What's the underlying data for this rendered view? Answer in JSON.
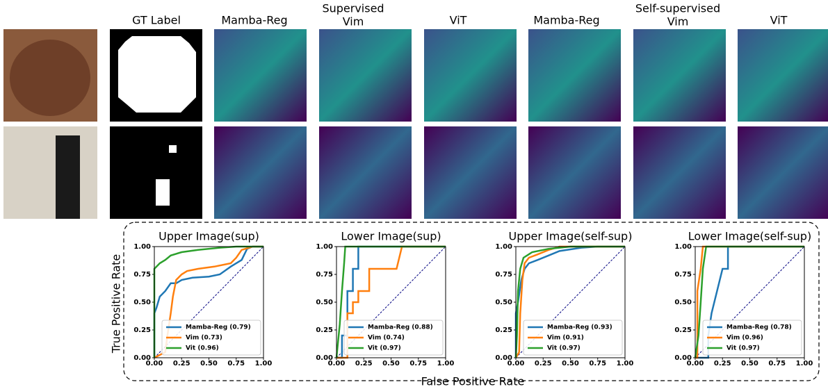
{
  "panel_headers": [
    "GT Label",
    "Mamba-Reg",
    "Supervised",
    "Vim",
    "ViT",
    "Mamba-Reg",
    "Self-supervised",
    "Vim",
    "ViT"
  ],
  "shared_axes": {
    "x_label": "False Positive Rate",
    "y_label": "True Positive Rate"
  },
  "chart_data": [
    {
      "type": "line",
      "title": "Upper Image(sup)",
      "xlim": [
        0,
        1
      ],
      "ylim": [
        0,
        1
      ],
      "xticks": [
        {
          "value": 0,
          "label": "0.00"
        },
        {
          "value": 0.25,
          "label": "0.25"
        },
        {
          "value": 0.5,
          "label": "0.50"
        },
        {
          "value": 0.75,
          "label": "0.75"
        },
        {
          "value": 1,
          "label": "1.00"
        }
      ],
      "yticks": [
        {
          "value": 0,
          "label": "0.00"
        },
        {
          "value": 0.25,
          "label": "0.25"
        },
        {
          "value": 0.5,
          "label": "0.50"
        },
        {
          "value": 0.75,
          "label": "0.75"
        },
        {
          "value": 1,
          "label": "1.00"
        }
      ],
      "legend": "lower right",
      "series": [
        {
          "name": "Mamba-Reg (0.79)",
          "color": "#1f77b4",
          "x": [
            0,
            0,
            0.02,
            0.05,
            0.1,
            0.15,
            0.2,
            0.25,
            0.35,
            0.5,
            0.6,
            0.7,
            0.8,
            0.85,
            0.9,
            1
          ],
          "values": [
            0,
            0.4,
            0.45,
            0.55,
            0.6,
            0.67,
            0.67,
            0.7,
            0.72,
            0.73,
            0.75,
            0.82,
            0.88,
            0.98,
            1,
            1
          ]
        },
        {
          "name": "Vim (0.73)",
          "color": "#ff7f0e",
          "x": [
            0,
            0.1,
            0.12,
            0.15,
            0.17,
            0.2,
            0.25,
            0.3,
            0.4,
            0.55,
            0.7,
            0.75,
            0.8,
            0.9,
            1
          ],
          "values": [
            0,
            0.05,
            0.2,
            0.4,
            0.55,
            0.7,
            0.75,
            0.78,
            0.8,
            0.82,
            0.85,
            0.9,
            0.97,
            1,
            1
          ]
        },
        {
          "name": "Vit (0.96)",
          "color": "#2ca02c",
          "x": [
            0,
            0,
            0.05,
            0.1,
            0.15,
            0.25,
            0.4,
            0.6,
            0.75,
            1
          ],
          "values": [
            0,
            0.8,
            0.85,
            0.88,
            0.92,
            0.95,
            0.97,
            0.99,
            1,
            1
          ]
        }
      ]
    },
    {
      "type": "line",
      "title": "Lower Image(sup)",
      "xlim": [
        0,
        1
      ],
      "ylim": [
        0,
        1
      ],
      "xticks": [
        {
          "value": 0,
          "label": "0.00"
        },
        {
          "value": 0.25,
          "label": "0.25"
        },
        {
          "value": 0.5,
          "label": "0.50"
        },
        {
          "value": 0.75,
          "label": "0.75"
        },
        {
          "value": 1,
          "label": "1.00"
        }
      ],
      "yticks": [
        {
          "value": 0,
          "label": "0.00"
        },
        {
          "value": 0.25,
          "label": "0.25"
        },
        {
          "value": 0.5,
          "label": "0.50"
        },
        {
          "value": 0.75,
          "label": "0.75"
        },
        {
          "value": 1,
          "label": "1.00"
        }
      ],
      "legend": "lower right",
      "series": [
        {
          "name": "Mamba-Reg (0.88)",
          "color": "#1f77b4",
          "x": [
            0,
            0.05,
            0.05,
            0.1,
            0.1,
            0.15,
            0.15,
            0.2,
            0.2,
            1
          ],
          "values": [
            0,
            0,
            0.2,
            0.2,
            0.6,
            0.6,
            0.8,
            0.8,
            1,
            1
          ]
        },
        {
          "name": "Vim (0.74)",
          "color": "#ff7f0e",
          "x": [
            0,
            0.1,
            0.1,
            0.15,
            0.15,
            0.2,
            0.2,
            0.3,
            0.3,
            0.55,
            0.6,
            1
          ],
          "values": [
            0,
            0,
            0.4,
            0.4,
            0.5,
            0.5,
            0.6,
            0.6,
            0.8,
            0.8,
            1,
            1
          ]
        },
        {
          "name": "Vit (0.97)",
          "color": "#2ca02c",
          "x": [
            0,
            0.03,
            0.05,
            0.07,
            0.08,
            1
          ],
          "values": [
            0,
            0.3,
            0.6,
            0.85,
            1,
            1
          ]
        }
      ]
    },
    {
      "type": "line",
      "title": "Upper Image(self-sup)",
      "xlim": [
        0,
        1
      ],
      "ylim": [
        0,
        1
      ],
      "xticks": [
        {
          "value": 0,
          "label": "0.00"
        },
        {
          "value": 0.25,
          "label": "0.25"
        },
        {
          "value": 0.5,
          "label": "0.50"
        },
        {
          "value": 0.75,
          "label": "0.75"
        },
        {
          "value": 1,
          "label": "1.00"
        }
      ],
      "yticks": [
        {
          "value": 0,
          "label": "0.00"
        },
        {
          "value": 0.25,
          "label": "0.25"
        },
        {
          "value": 0.5,
          "label": "0.50"
        },
        {
          "value": 0.75,
          "label": "0.75"
        },
        {
          "value": 1,
          "label": "1.00"
        }
      ],
      "legend": "lower right",
      "series": [
        {
          "name": "Mamba-Reg (0.93)",
          "color": "#1f77b4",
          "x": [
            0,
            0,
            0.02,
            0.05,
            0.08,
            0.12,
            0.2,
            0.3,
            0.4,
            0.6,
            0.75,
            1
          ],
          "values": [
            0,
            0.4,
            0.5,
            0.7,
            0.8,
            0.85,
            0.88,
            0.92,
            0.96,
            0.99,
            1,
            1
          ]
        },
        {
          "name": "Vim (0.91)",
          "color": "#ff7f0e",
          "x": [
            0,
            0.03,
            0.04,
            0.06,
            0.08,
            0.12,
            0.2,
            0.3,
            0.4,
            1
          ],
          "values": [
            0,
            0.05,
            0.4,
            0.7,
            0.85,
            0.9,
            0.93,
            0.97,
            1,
            1
          ]
        },
        {
          "name": "Vit (0.97)",
          "color": "#2ca02c",
          "x": [
            0,
            0.01,
            0.02,
            0.04,
            0.07,
            0.15,
            0.3,
            0.5,
            1
          ],
          "values": [
            0,
            0.2,
            0.6,
            0.8,
            0.9,
            0.95,
            0.98,
            1,
            1
          ]
        }
      ]
    },
    {
      "type": "line",
      "title": "Lower Image(self-sup)",
      "xlim": [
        0,
        1
      ],
      "ylim": [
        0,
        1
      ],
      "xticks": [
        {
          "value": 0,
          "label": "0.00"
        },
        {
          "value": 0.25,
          "label": "0.25"
        },
        {
          "value": 0.5,
          "label": "0.50"
        },
        {
          "value": 0.75,
          "label": "0.75"
        },
        {
          "value": 1,
          "label": "1.00"
        }
      ],
      "yticks": [
        {
          "value": 0,
          "label": "0.00"
        },
        {
          "value": 0.25,
          "label": "0.25"
        },
        {
          "value": 0.5,
          "label": "0.50"
        },
        {
          "value": 0.75,
          "label": "0.75"
        },
        {
          "value": 1,
          "label": "1.00"
        }
      ],
      "legend": "lower right",
      "series": [
        {
          "name": "Mamba-Reg (0.78)",
          "color": "#1f77b4",
          "x": [
            0,
            0.12,
            0.12,
            0.15,
            0.2,
            0.25,
            0.3,
            0.3,
            1
          ],
          "values": [
            0,
            0,
            0.2,
            0.4,
            0.6,
            0.8,
            0.8,
            1,
            1
          ]
        },
        {
          "name": "Vim (0.96)",
          "color": "#ff7f0e",
          "x": [
            0,
            0.02,
            0.02,
            0.05,
            0.07,
            1
          ],
          "values": [
            0,
            0,
            0.6,
            0.8,
            1,
            1
          ]
        },
        {
          "name": "Vit (0.97)",
          "color": "#2ca02c",
          "x": [
            0,
            0.03,
            0.05,
            0.07,
            0.1,
            1
          ],
          "values": [
            0,
            0.2,
            0.5,
            0.8,
            1,
            1
          ]
        }
      ]
    }
  ]
}
